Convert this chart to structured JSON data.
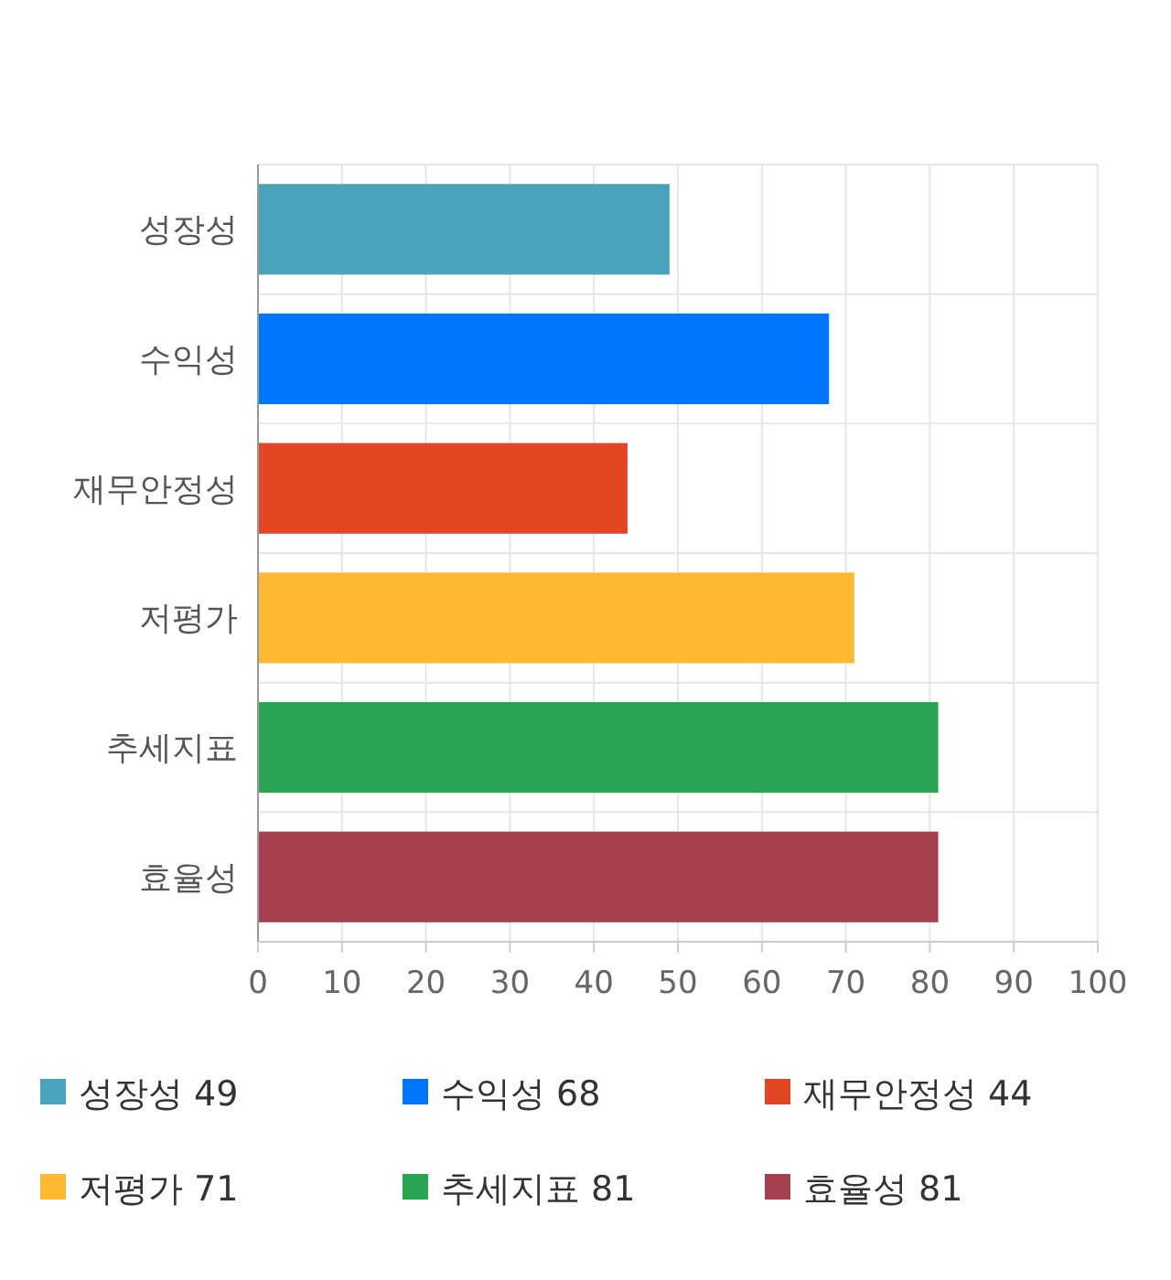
{
  "chart_data": {
    "type": "bar",
    "orientation": "horizontal",
    "stacked": true,
    "categories": [
      "성장성",
      "수익성",
      "재무안정성",
      "저평가",
      "추세지표",
      "효율성"
    ],
    "series": [
      {
        "name": "성장성 49",
        "color": "#4aa3ba",
        "values": [
          49,
          null,
          null,
          null,
          null,
          null
        ]
      },
      {
        "name": "수익성 68",
        "color": "#0076ff",
        "values": [
          null,
          68,
          null,
          null,
          null,
          null
        ]
      },
      {
        "name": "재무안정성 44",
        "color": "#e34623",
        "values": [
          null,
          null,
          44,
          null,
          null,
          null
        ]
      },
      {
        "name": "저평가 71",
        "color": "#ffb833",
        "values": [
          null,
          null,
          null,
          71,
          null,
          null
        ]
      },
      {
        "name": "추세지표 81",
        "color": "#28a654",
        "values": [
          null,
          null,
          null,
          null,
          81,
          null
        ]
      },
      {
        "name": "효율성 81",
        "color": "#a6404f",
        "values": [
          null,
          null,
          null,
          null,
          null,
          81
        ]
      }
    ],
    "xlim": [
      0,
      100
    ],
    "xticks": [
      0,
      10,
      20,
      30,
      40,
      50,
      60,
      70,
      80,
      90,
      100
    ],
    "grid": true,
    "legend": "bottom"
  }
}
